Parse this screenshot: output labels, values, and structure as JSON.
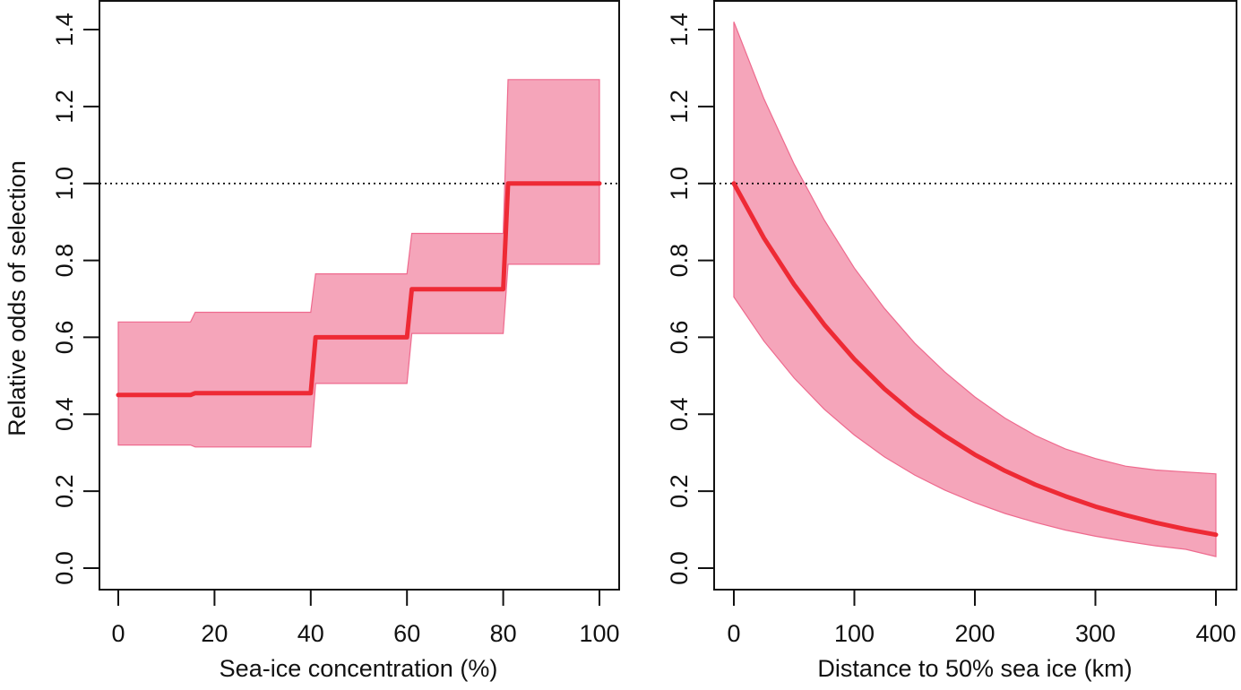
{
  "chart_data": [
    {
      "type": "line",
      "subtype": "step-with-confidence-band",
      "title": "",
      "xlabel": "Sea-ice concentration (%)",
      "ylabel": "Relative odds of selection",
      "xlim": [
        0,
        100
      ],
      "ylim": [
        0,
        1.4
      ],
      "xticks": [
        0,
        20,
        40,
        60,
        80,
        100
      ],
      "xtick_labels": [
        "0",
        "20",
        "40",
        "60",
        "80",
        "100"
      ],
      "yticks": [
        0.0,
        0.2,
        0.4,
        0.6,
        0.8,
        1.0,
        1.2,
        1.4
      ],
      "ytick_labels": [
        "0.0",
        "0.2",
        "0.4",
        "0.6",
        "0.8",
        "1.0",
        "1.2",
        "1.4"
      ],
      "reference_line": {
        "y": 1.0,
        "style": "dotted",
        "color": "#000000"
      },
      "colors": {
        "line": "#ee2a35",
        "band": "#f5a5ba",
        "band_edge": "#ee6a8e"
      },
      "series": [
        {
          "name": "estimate",
          "x": [
            0,
            15,
            16,
            40,
            41,
            60,
            61,
            80,
            81,
            100
          ],
          "values": [
            0.45,
            0.45,
            0.455,
            0.455,
            0.6,
            0.6,
            0.725,
            0.725,
            1.0,
            1.0
          ]
        },
        {
          "name": "lower CI",
          "x": [
            0,
            15,
            16,
            40,
            41,
            60,
            61,
            80,
            81,
            100
          ],
          "values": [
            0.32,
            0.32,
            0.315,
            0.315,
            0.48,
            0.48,
            0.61,
            0.61,
            0.79,
            0.79
          ]
        },
        {
          "name": "upper CI",
          "x": [
            0,
            15,
            16,
            40,
            41,
            60,
            61,
            80,
            81,
            100
          ],
          "values": [
            0.64,
            0.64,
            0.665,
            0.665,
            0.765,
            0.765,
            0.87,
            0.87,
            1.27,
            1.27
          ]
        }
      ],
      "grid": false,
      "legend": "none"
    },
    {
      "type": "line",
      "subtype": "curve-with-confidence-band",
      "title": "",
      "xlabel": "Distance to 50% sea ice (km)",
      "ylabel": "",
      "xlim": [
        0,
        400
      ],
      "ylim": [
        0,
        1.4
      ],
      "xticks": [
        0,
        100,
        200,
        300,
        400
      ],
      "xtick_labels": [
        "0",
        "100",
        "200",
        "300",
        "400"
      ],
      "yticks": [
        0.0,
        0.2,
        0.4,
        0.6,
        0.8,
        1.0,
        1.2,
        1.4
      ],
      "ytick_labels": [
        "0.0",
        "0.2",
        "0.4",
        "0.6",
        "0.8",
        "1.0",
        "1.2",
        "1.4"
      ],
      "reference_line": {
        "y": 1.0,
        "style": "dotted",
        "color": "#000000"
      },
      "colors": {
        "line": "#ee2a35",
        "band": "#f5a5ba",
        "band_edge": "#ee6a8e"
      },
      "series": [
        {
          "name": "estimate",
          "x": [
            0,
            25,
            50,
            75,
            100,
            125,
            150,
            175,
            200,
            225,
            250,
            275,
            300,
            325,
            350,
            375,
            400
          ],
          "values": [
            1.0,
            0.858,
            0.737,
            0.633,
            0.543,
            0.466,
            0.4,
            0.344,
            0.295,
            0.253,
            0.217,
            0.187,
            0.16,
            0.138,
            0.118,
            0.101,
            0.087
          ]
        },
        {
          "name": "lower CI",
          "x": [
            0,
            25,
            50,
            75,
            100,
            125,
            150,
            175,
            200,
            225,
            250,
            275,
            300,
            325,
            350,
            375,
            400
          ],
          "values": [
            0.705,
            0.59,
            0.494,
            0.413,
            0.346,
            0.289,
            0.242,
            0.203,
            0.17,
            0.142,
            0.119,
            0.099,
            0.083,
            0.07,
            0.058,
            0.049,
            0.03
          ]
        },
        {
          "name": "upper CI",
          "x": [
            0,
            25,
            50,
            75,
            100,
            125,
            150,
            175,
            200,
            225,
            250,
            275,
            300,
            325,
            350,
            375,
            400
          ],
          "values": [
            1.42,
            1.22,
            1.05,
            0.905,
            0.78,
            0.675,
            0.585,
            0.51,
            0.445,
            0.39,
            0.345,
            0.31,
            0.285,
            0.265,
            0.255,
            0.25,
            0.245
          ]
        }
      ],
      "grid": false,
      "legend": "none"
    }
  ]
}
